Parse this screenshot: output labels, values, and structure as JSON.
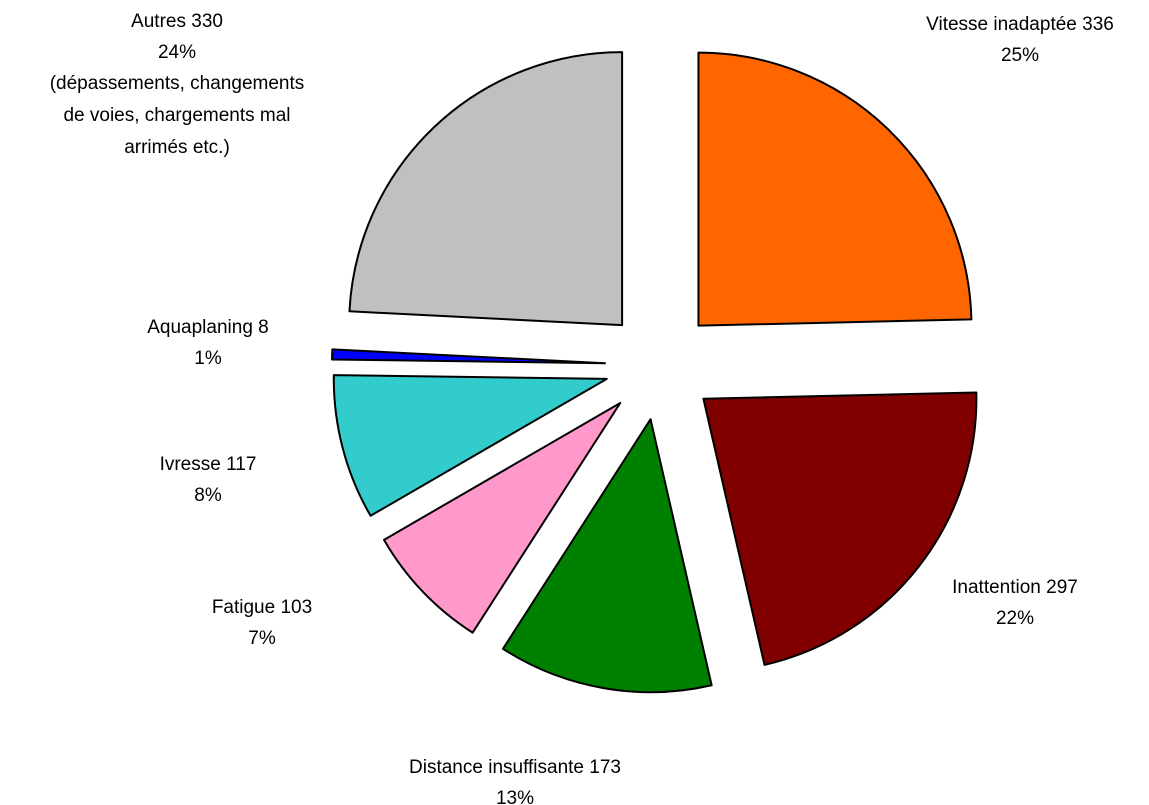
{
  "chart_data": {
    "type": "pie",
    "categories": [
      "Vitesse inadaptée",
      "Inattention",
      "Distance insuffisante",
      "Fatigue",
      "Ivresse",
      "Aquaplaning",
      "Autres"
    ],
    "values": [
      336,
      297,
      173,
      103,
      117,
      8,
      330
    ],
    "percent_labels": [
      "25%",
      "22%",
      "13%",
      "7%",
      "8%",
      "1%",
      "24%"
    ],
    "colors": [
      "#ff6600",
      "#800000",
      "#008000",
      "#ff99cc",
      "#33cccc",
      "#0000ff",
      "#c0c0c0"
    ],
    "exploded": true,
    "annotations": [
      {
        "lines": [
          "(dépassements, changements",
          "de voies, chargements mal",
          "arrimés etc.)"
        ]
      }
    ]
  }
}
